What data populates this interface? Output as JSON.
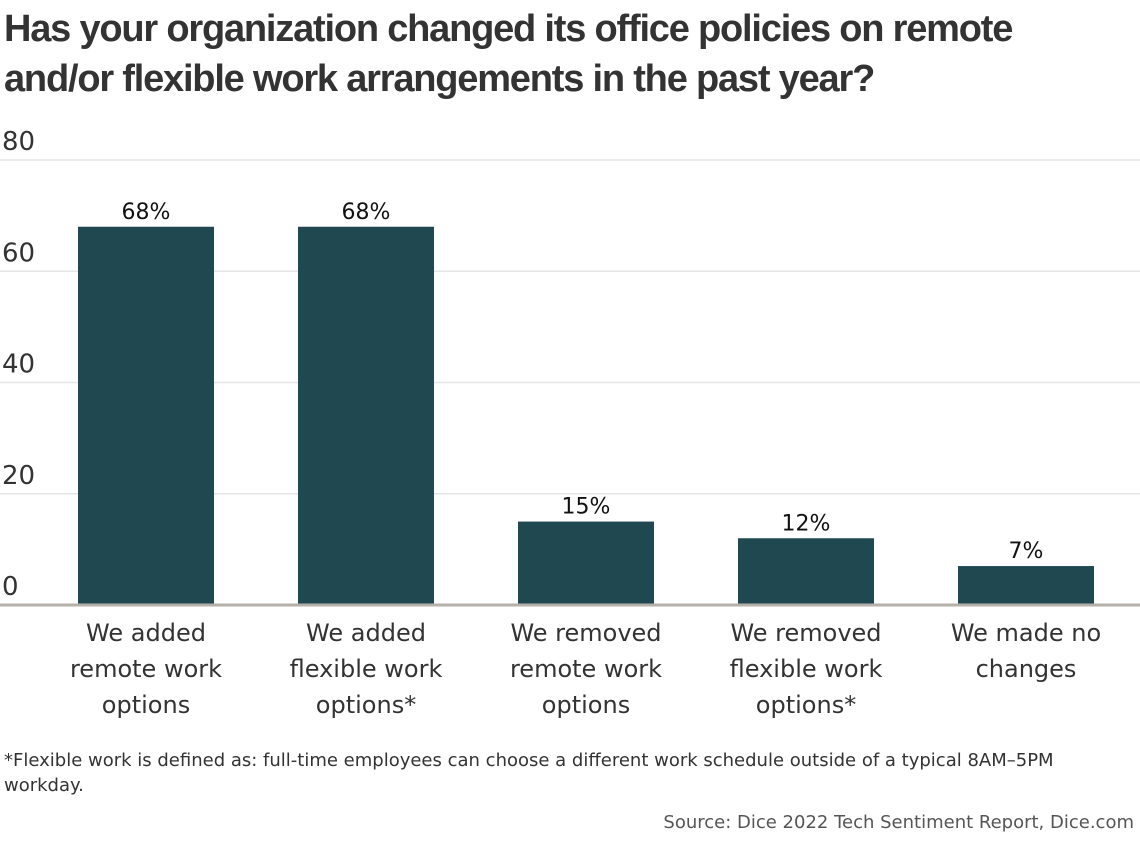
{
  "title": "Has your organization changed its office policies on remote and/or flexible work arrangements in the past year?",
  "footnote": "*Flexible work is defined as: full-time employees can choose a different work schedule outside of a typical 8AM–5PM workday.",
  "source": "Source: Dice 2022 Tech Sentiment Report, Dice.com",
  "colors": {
    "bar": "#1f4850",
    "grid": "#e6e6e6",
    "axis": "#b5b0aa",
    "text": "#333333"
  },
  "chart_data": {
    "type": "bar",
    "title": "Has your organization changed its office policies on remote and/or flexible work arrangements in the past year?",
    "categories": [
      [
        "We added",
        "remote work",
        "options"
      ],
      [
        "We added",
        "flexible work",
        "options*"
      ],
      [
        "We removed",
        "remote work",
        "options"
      ],
      [
        "We removed",
        "flexible work",
        "options*"
      ],
      [
        "We made no",
        "changes"
      ]
    ],
    "values": [
      68,
      68,
      15,
      12,
      7
    ],
    "value_labels": [
      "68%",
      "68%",
      "15%",
      "12%",
      "7%"
    ],
    "ylim": [
      0,
      80
    ],
    "yticks": [
      0,
      20,
      40,
      60,
      80
    ],
    "grid": true,
    "legend": "none"
  }
}
